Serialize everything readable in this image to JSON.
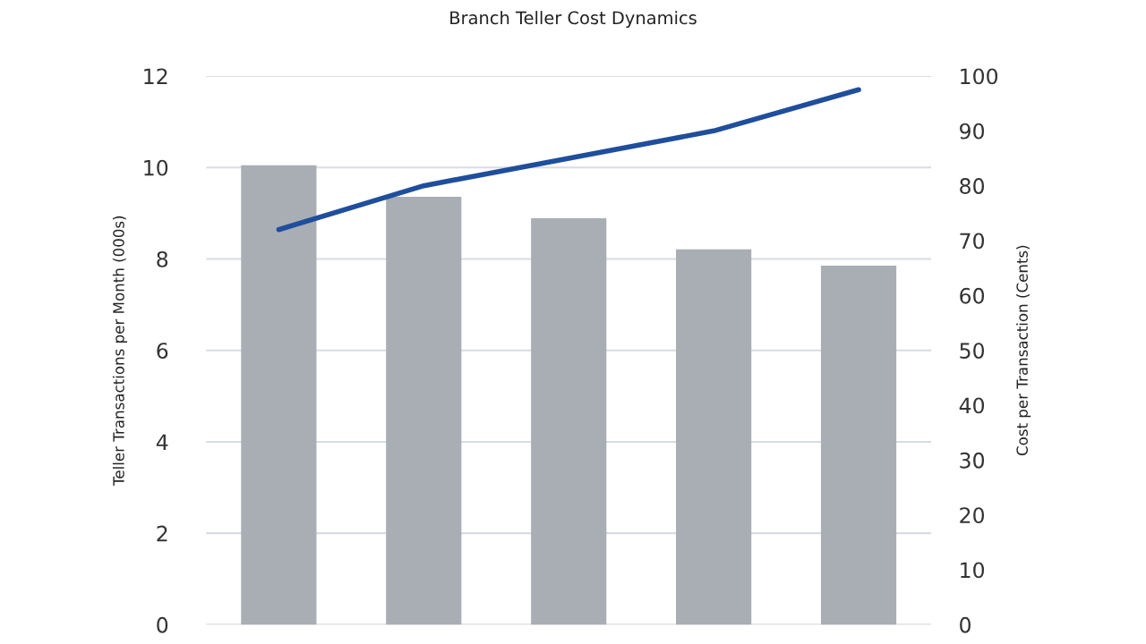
{
  "chart_data": {
    "type": "bar",
    "title": "Branch Teller Cost Dynamics",
    "ylabel": "Teller Transactions per Month (000s)",
    "y2label": "Cost per Transaction (Cents)",
    "categories": [
      null,
      null,
      null,
      null,
      null
    ],
    "series": [
      {
        "color": "#a8aeb4",
        "values": [
          10.05,
          9.36,
          8.89,
          8.21,
          7.85
        ]
      },
      {
        "type": "line",
        "axis": "y2",
        "color": "#1f4e9c",
        "values": [
          72,
          80,
          85,
          90,
          97.5
        ]
      }
    ],
    "ylim": [
      0,
      12
    ],
    "yticks": [
      0,
      2,
      4,
      6,
      8,
      10,
      12
    ],
    "y2lim": [
      0,
      100
    ],
    "y2ticks": [
      0,
      10,
      20,
      30,
      40,
      50,
      60,
      70,
      80,
      90,
      100
    ],
    "grid": "y",
    "tick_labels": "y",
    "line_style": "solid",
    "marker": "none"
  }
}
